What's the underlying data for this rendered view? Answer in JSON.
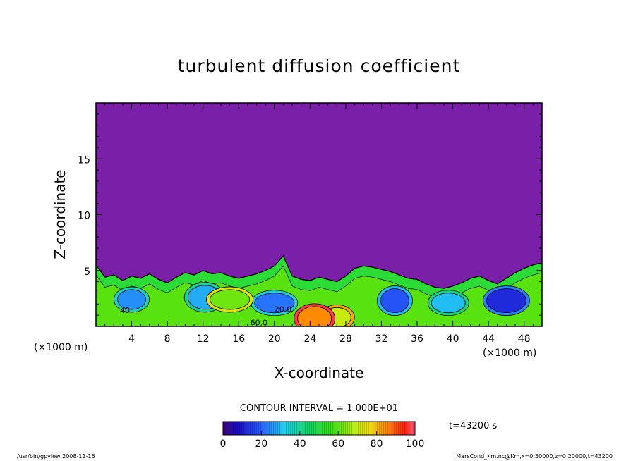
{
  "chart_data": {
    "type": "heatmap",
    "title": "turbulent diffusion coefficient",
    "xlabel": "X-coordinate",
    "ylabel": "Z-coordinate",
    "x_unit": "(×1000 m)",
    "z_unit": "(×1000 m)",
    "xlim": [
      0,
      50
    ],
    "ylim": [
      0,
      20
    ],
    "x_ticks": [
      4,
      8,
      12,
      16,
      20,
      24,
      28,
      32,
      36,
      40,
      44,
      48
    ],
    "y_ticks": [
      5,
      10,
      15
    ],
    "contour_interval_text": "CONTOUR INTERVAL = 1.000E+01",
    "colorbar": {
      "min": 0,
      "max": 100,
      "ticks": [
        0,
        20,
        40,
        60,
        80,
        100
      ]
    },
    "time_text": "t=43200 s",
    "background_value": 0,
    "boundary_layer_top": [
      [
        0,
        5.5
      ],
      [
        1,
        4.4
      ],
      [
        2,
        4.6
      ],
      [
        3,
        4.1
      ],
      [
        4,
        4.5
      ],
      [
        5,
        4.3
      ],
      [
        6,
        4.7
      ],
      [
        7,
        4.2
      ],
      [
        8,
        3.9
      ],
      [
        9,
        4.4
      ],
      [
        10,
        4.8
      ],
      [
        11,
        4.6
      ],
      [
        12,
        5.0
      ],
      [
        13,
        4.7
      ],
      [
        14,
        4.8
      ],
      [
        15,
        4.5
      ],
      [
        16,
        4.3
      ],
      [
        17,
        4.5
      ],
      [
        18,
        4.7
      ],
      [
        19,
        5.0
      ],
      [
        20,
        5.4
      ],
      [
        21,
        6.3
      ],
      [
        22,
        4.5
      ],
      [
        23,
        4.2
      ],
      [
        24,
        4.1
      ],
      [
        25,
        4.4
      ],
      [
        26,
        4.2
      ],
      [
        27,
        4.0
      ],
      [
        28,
        4.5
      ],
      [
        29,
        5.2
      ],
      [
        30,
        5.4
      ],
      [
        31,
        5.3
      ],
      [
        32,
        5.1
      ],
      [
        33,
        4.9
      ],
      [
        34,
        4.6
      ],
      [
        35,
        4.3
      ],
      [
        36,
        4.2
      ],
      [
        37,
        3.8
      ],
      [
        38,
        3.5
      ],
      [
        39,
        3.4
      ],
      [
        40,
        3.6
      ],
      [
        41,
        3.9
      ],
      [
        42,
        4.3
      ],
      [
        43,
        4.5
      ],
      [
        44,
        4.1
      ],
      [
        45,
        3.8
      ],
      [
        46,
        4.3
      ],
      [
        47,
        4.8
      ],
      [
        48,
        5.2
      ],
      [
        49,
        5.5
      ],
      [
        50,
        5.7
      ]
    ],
    "cells": [
      {
        "x": 4,
        "z": 2.4,
        "value": 25
      },
      {
        "x": 12.2,
        "z": 2.6,
        "value": 28
      },
      {
        "x": 20,
        "z": 2.1,
        "value": 22
      },
      {
        "x": 33.5,
        "z": 2.3,
        "value": 18
      },
      {
        "x": 39.5,
        "z": 2.1,
        "value": 30
      },
      {
        "x": 46,
        "z": 2.3,
        "value": 12
      },
      {
        "x": 27,
        "z": 0.8,
        "value": 70
      },
      {
        "x": 24.5,
        "z": 0.7,
        "value": 85
      },
      {
        "x": 15,
        "z": 2.4,
        "value": 62
      }
    ],
    "contour_labels": [
      {
        "text": "40",
        "x": 2.7,
        "z": 1.2
      },
      {
        "text": "20.0",
        "x": 20.0,
        "z": 1.3
      },
      {
        "text": "60.0",
        "x": 17.3,
        "z": 0.1
      }
    ]
  },
  "footer": {
    "left": "/usr/bin/gpview   2008-11-16",
    "right": "MarsCond_Km.nc@Km,x=0:50000,z=0:20000,t=43200"
  },
  "colors": {
    "background_field": "#7a1fa8",
    "frame": "#000000"
  }
}
